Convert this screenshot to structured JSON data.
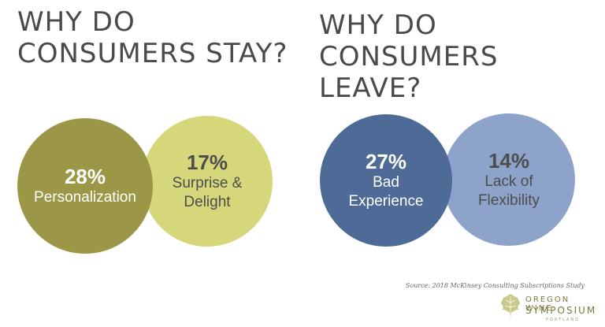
{
  "left": {
    "title_line1": "WHY DO",
    "title_line2": "CONSUMERS STAY?",
    "circles": [
      {
        "percent": "28%",
        "label": "Personalization",
        "color": "#9b9747"
      },
      {
        "percent": "17%",
        "label_line1": "Surprise &",
        "label_line2": "Delight",
        "color": "#d5d77a"
      }
    ]
  },
  "right": {
    "title_line1": "WHY DO",
    "title_line2": "CONSUMERS LEAVE?",
    "circles": [
      {
        "percent": "27%",
        "label_line1": "Bad",
        "label_line2": "Experience",
        "color": "#4e6a97"
      },
      {
        "percent": "14%",
        "label_line1": "Lack of",
        "label_line2": "Flexibility",
        "color": "#8ea3c9"
      }
    ]
  },
  "source": "Source: 2018 McKinsey Consulting Subscriptions Study",
  "logo": {
    "line1": "OREGON WINE",
    "line2": "SYMPOSIUM",
    "line3": "PORTLAND",
    "icon": "grape-leaf-icon"
  }
}
